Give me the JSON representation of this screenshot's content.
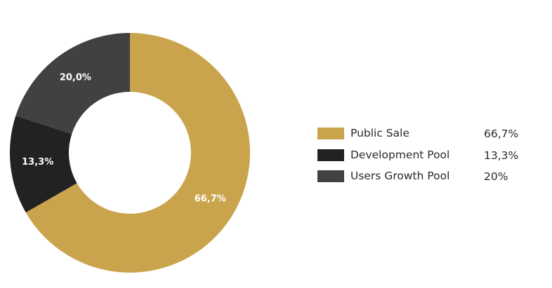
{
  "chart_data": {
    "type": "pie",
    "donut": true,
    "slices": [
      {
        "name": "Public Sale",
        "value": 66.7,
        "label": "66,7%",
        "legend_value": "66,7%",
        "color": "#c9a44d"
      },
      {
        "name": "Development Pool",
        "value": 13.3,
        "label": "13,3%",
        "legend_value": "13,3%",
        "color": "#222222"
      },
      {
        "name": "Users Growth Pool",
        "value": 20.0,
        "label": "20,0%",
        "legend_value": "20%",
        "color": "#414141"
      }
    ],
    "legend_position": "right"
  }
}
